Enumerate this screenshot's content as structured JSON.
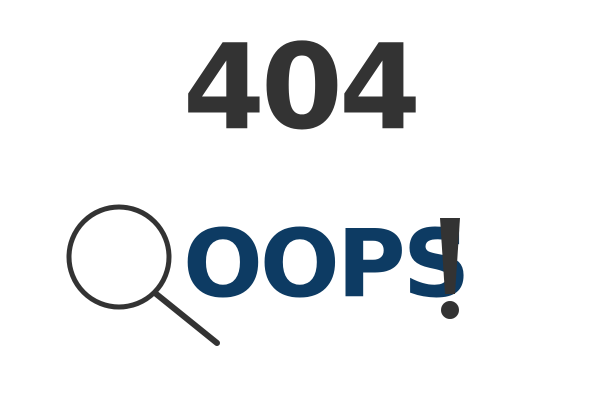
{
  "error": {
    "code": "404",
    "message": "OOPS",
    "icons": [
      "magnifier-icon",
      "exclamation-icon"
    ],
    "colors": {
      "code": "#333333",
      "message": "#0d3b63",
      "icon": "#333333"
    }
  }
}
